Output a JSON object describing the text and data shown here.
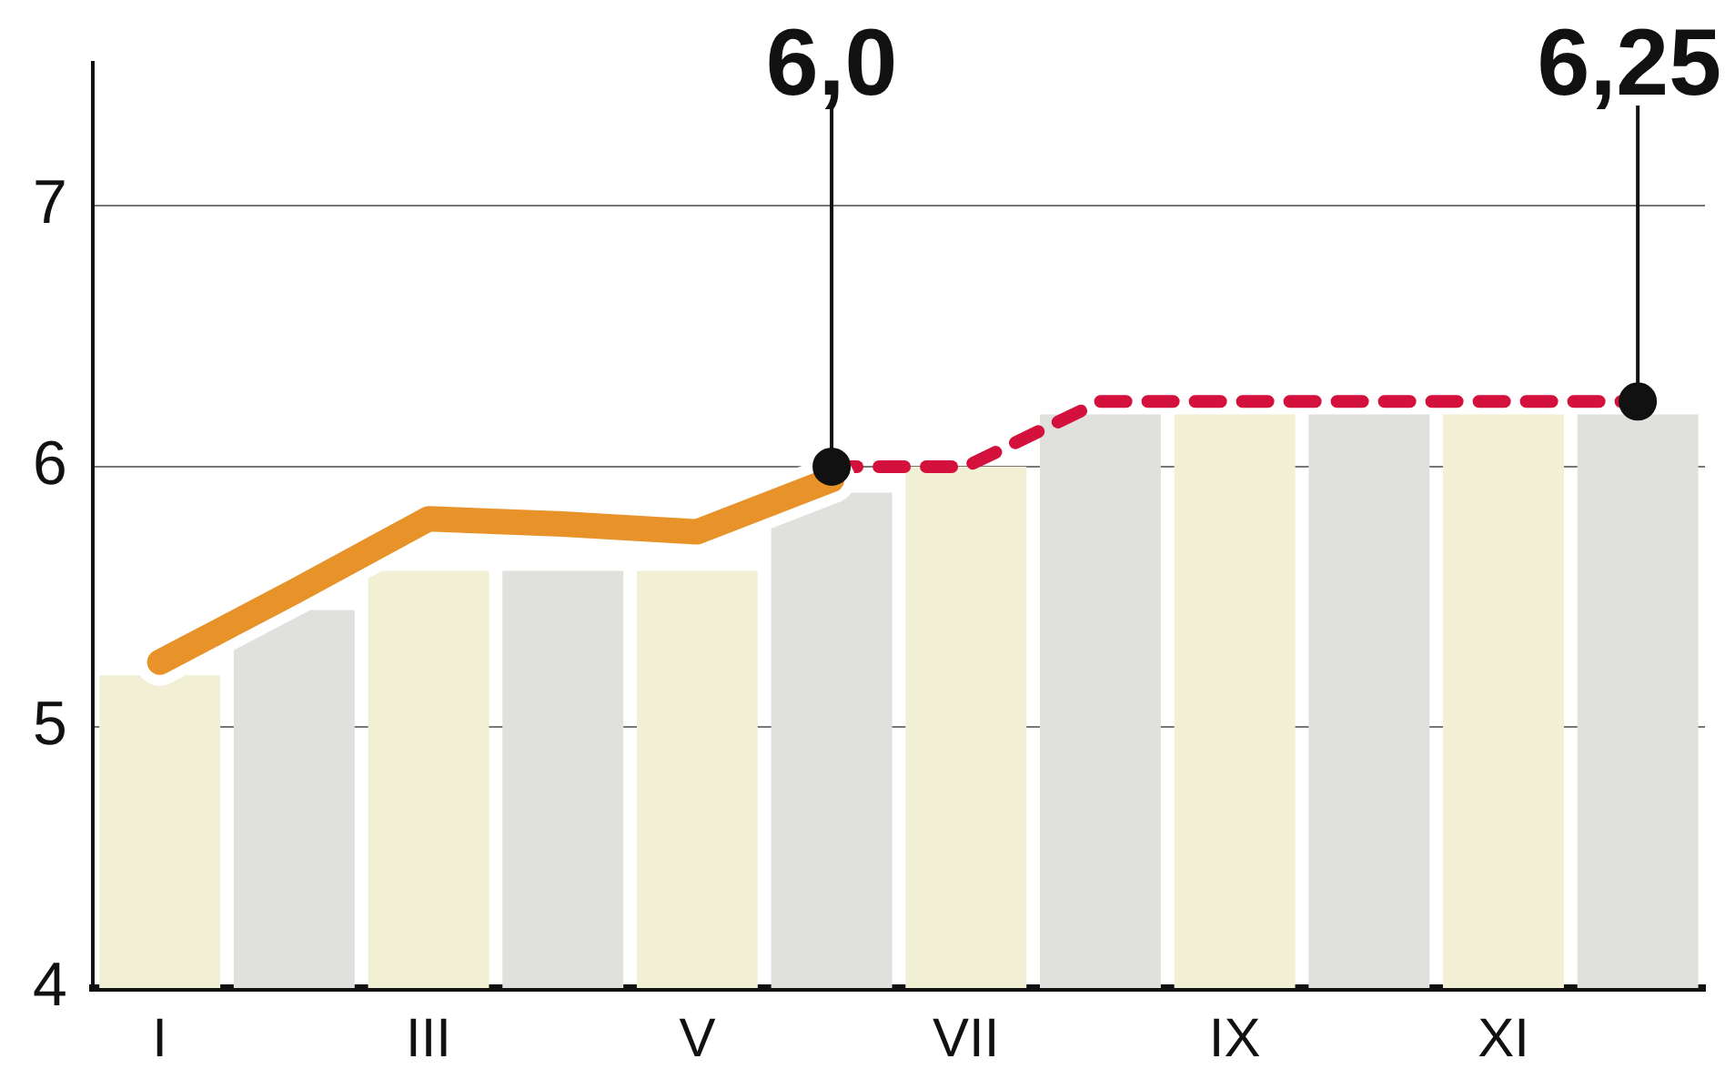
{
  "chart_data": {
    "type": "bar",
    "categories": [
      "I",
      null,
      "III",
      null,
      "V",
      null,
      "VII",
      null,
      "IX",
      null,
      "XI",
      null
    ],
    "series": [
      {
        "colors": [
          "#f1f0d4",
          "#e0e0dc",
          "#f1f0d4",
          "#e0e0dc",
          "#f1f0d4",
          "#e0e0dc",
          "#f1f0d4",
          "#e0e0dc",
          "#f1f0d4",
          "#e0e0dc",
          "#f1f0d4",
          "#e0e0dc"
        ],
        "values": [
          5.2,
          5.45,
          5.6,
          5.6,
          5.6,
          5.9,
          6.0,
          6.2,
          6.2,
          6.2,
          6.2,
          6.2
        ]
      },
      {
        "type": "line",
        "color": "#e8922a",
        "line_style": "solid",
        "values": [
          5.25,
          5.52,
          5.8,
          5.78,
          5.75,
          5.95,
          null,
          null,
          null,
          null,
          null,
          null
        ]
      },
      {
        "type": "line",
        "color": "#d4103c",
        "line_style": "dashed",
        "values": [
          null,
          null,
          null,
          null,
          null,
          6.0,
          6.0,
          6.25,
          6.25,
          6.25,
          6.25,
          6.25
        ]
      },
      {
        "type": "scatter",
        "color": "#111111",
        "marker": "circle",
        "values": [
          null,
          null,
          null,
          null,
          null,
          6.0,
          null,
          null,
          null,
          null,
          null,
          6.25
        ]
      }
    ],
    "annotations": [
      {
        "text": "6,0",
        "y": 6.0
      },
      {
        "text": "6,25",
        "y": 6.25
      }
    ],
    "ylim": [
      4,
      7.55
    ],
    "yticks": [
      4,
      5,
      6,
      7
    ],
    "grid": "y",
    "legend": false,
    "marker": "none"
  }
}
